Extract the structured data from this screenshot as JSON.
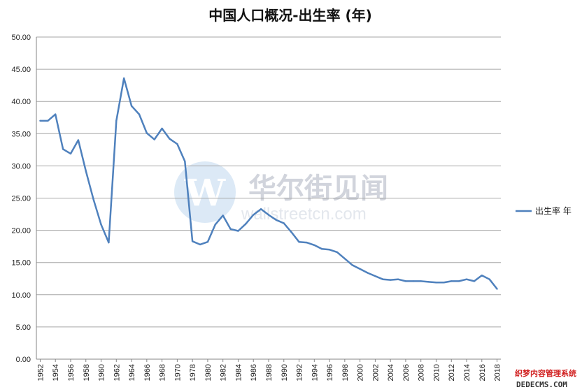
{
  "colors": {
    "series": "#4f81bd",
    "grid": "#a6a6a6",
    "axis": "#868686",
    "watermark_logo": "#c9def2",
    "corner_text": "#d11f1f"
  },
  "watermark": {
    "logo_letter": "W",
    "text_cn": "华尔街见闻",
    "text_en": "wallstreetcn.com"
  },
  "corner_mark": {
    "line1": "织梦内容管理系统",
    "line2": "DEDECMS.COM"
  },
  "chart_data": {
    "type": "line",
    "title": "中国人口概况-出生率 (年)",
    "xlabel": "",
    "ylabel": "",
    "ylim": [
      0,
      50
    ],
    "y_ticks": [
      "0.00",
      "5.00",
      "10.00",
      "15.00",
      "20.00",
      "25.00",
      "30.00",
      "35.00",
      "40.00",
      "45.00",
      "50.00"
    ],
    "x_tick_labels": [
      "1952",
      "1954",
      "1956",
      "1958",
      "1960",
      "1962",
      "1964",
      "1966",
      "1968",
      "1970",
      "1978",
      "1980",
      "1982",
      "1984",
      "1986",
      "1988",
      "1990",
      "1992",
      "1994",
      "1996",
      "1998",
      "2000",
      "2002",
      "2004",
      "2006",
      "2008",
      "2010",
      "2012",
      "2014",
      "2016",
      "2018"
    ],
    "grid": true,
    "legend_position": "right",
    "x": [
      "1952",
      "1953",
      "1954",
      "1955",
      "1956",
      "1957",
      "1958",
      "1959",
      "1960",
      "1961",
      "1962",
      "1963",
      "1964",
      "1965",
      "1966",
      "1967",
      "1968",
      "1969",
      "1970",
      "1971",
      "1978",
      "1979",
      "1980",
      "1981",
      "1982",
      "1983",
      "1984",
      "1985",
      "1986",
      "1987",
      "1988",
      "1989",
      "1990",
      "1991",
      "1992",
      "1993",
      "1994",
      "1995",
      "1996",
      "1997",
      "1998",
      "1999",
      "2000",
      "2001",
      "2002",
      "2003",
      "2004",
      "2005",
      "2006",
      "2007",
      "2008",
      "2009",
      "2010",
      "2011",
      "2012",
      "2013",
      "2014",
      "2015",
      "2016",
      "2017",
      "2018"
    ],
    "series": [
      {
        "name": "出生率 年",
        "values": [
          37.0,
          37.0,
          38.0,
          32.6,
          31.9,
          34.0,
          29.2,
          24.8,
          20.9,
          18.1,
          37.0,
          43.6,
          39.3,
          38.0,
          35.1,
          34.1,
          35.8,
          34.2,
          33.4,
          30.7,
          18.3,
          17.8,
          18.2,
          20.9,
          22.3,
          20.2,
          19.9,
          21.0,
          22.4,
          23.3,
          22.4,
          21.6,
          21.1,
          19.7,
          18.2,
          18.1,
          17.7,
          17.1,
          17.0,
          16.6,
          15.6,
          14.6,
          14.0,
          13.4,
          12.9,
          12.4,
          12.3,
          12.4,
          12.1,
          12.1,
          12.1,
          12.0,
          11.9,
          11.9,
          12.1,
          12.1,
          12.4,
          12.1,
          13.0,
          12.4,
          10.9
        ]
      }
    ]
  }
}
